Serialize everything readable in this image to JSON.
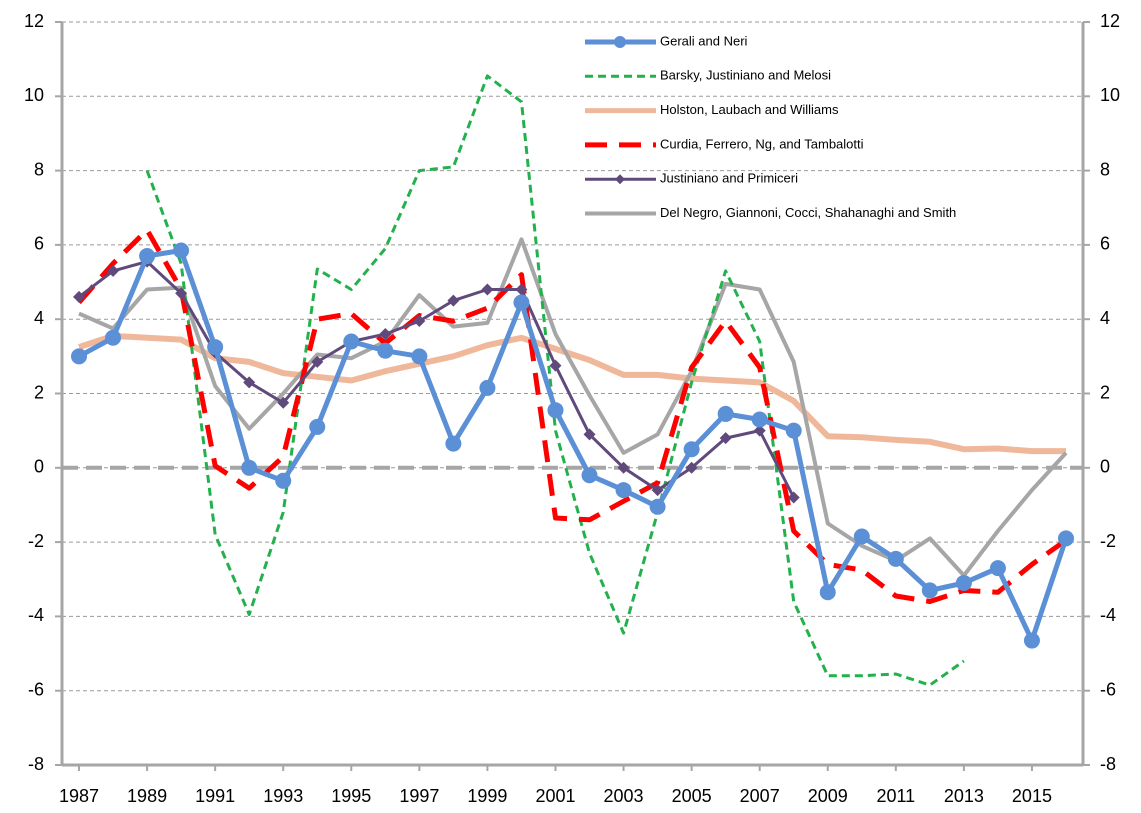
{
  "chart_data": {
    "type": "line",
    "x": [
      1987,
      1988,
      1989,
      1990,
      1991,
      1992,
      1993,
      1994,
      1995,
      1996,
      1997,
      1998,
      1999,
      2000,
      2001,
      2002,
      2003,
      2004,
      2005,
      2006,
      2007,
      2008,
      2009,
      2010,
      2011,
      2012,
      2013,
      2014,
      2015,
      2016
    ],
    "xlim": [
      1986.5,
      2016.5
    ],
    "xticks": [
      1987,
      1989,
      1991,
      1993,
      1995,
      1997,
      1999,
      2001,
      2003,
      2005,
      2007,
      2009,
      2011,
      2013,
      2015
    ],
    "ylim": [
      -8,
      12
    ],
    "yticks": [
      -8,
      -6,
      -4,
      -2,
      0,
      2,
      4,
      6,
      8,
      10,
      12
    ],
    "y2lim": [
      -8,
      12
    ],
    "y2ticks": [
      -8,
      -6,
      -4,
      -2,
      0,
      2,
      4,
      6,
      8,
      10,
      12
    ],
    "grid": true,
    "zero_line": true,
    "legend": "top-right",
    "series": [
      {
        "name": "Gerali and Neri",
        "color": "#5b8fd6",
        "marker": "circle",
        "dash": "solid",
        "width": 5,
        "values": [
          3.0,
          3.5,
          5.7,
          5.85,
          3.25,
          0.0,
          -0.35,
          1.1,
          3.4,
          3.15,
          3.0,
          0.65,
          2.15,
          4.45,
          1.55,
          -0.2,
          -0.6,
          -1.05,
          0.5,
          1.45,
          1.3,
          1.0,
          -3.35,
          -1.85,
          -2.45,
          -3.3,
          -3.1,
          -2.7,
          -4.65,
          -1.9
        ]
      },
      {
        "name": "Barsky, Justiniano and Melosi",
        "color": "#22b14c",
        "marker": "none",
        "dash": "short",
        "width": 3,
        "values": [
          null,
          null,
          8.0,
          5.5,
          -1.8,
          -3.95,
          -1.2,
          5.35,
          4.8,
          5.9,
          8.0,
          8.1,
          10.55,
          9.85,
          1.0,
          -2.3,
          -4.45,
          -1.2,
          2.3,
          5.3,
          3.4,
          -3.6,
          -5.6,
          -5.6,
          -5.55,
          -5.85,
          -5.2,
          null,
          null,
          null
        ]
      },
      {
        "name": "Holston, Laubach and Williams",
        "color": "#f0b89b",
        "marker": "none",
        "dash": "solid",
        "width": 6,
        "values": [
          3.25,
          3.55,
          3.5,
          3.45,
          2.95,
          2.85,
          2.55,
          2.45,
          2.35,
          2.6,
          2.8,
          3.0,
          3.3,
          3.5,
          3.2,
          2.9,
          2.5,
          2.5,
          2.4,
          2.35,
          2.3,
          1.8,
          0.85,
          0.82,
          0.75,
          0.7,
          0.5,
          0.52,
          0.45,
          0.45
        ]
      },
      {
        "name": "Curdia, Ferrero, Ng, and Tambalotti",
        "color": "#ff0000",
        "marker": "none",
        "dash": "long",
        "width": 5,
        "values": [
          4.45,
          5.5,
          6.4,
          4.8,
          0.05,
          -0.55,
          0.3,
          4.0,
          4.15,
          3.35,
          4.1,
          3.95,
          4.3,
          5.2,
          -1.35,
          -1.4,
          -0.9,
          -0.4,
          2.7,
          3.95,
          2.7,
          -1.7,
          -2.6,
          -2.75,
          -3.45,
          -3.6,
          -3.3,
          -3.35,
          -2.6,
          -1.95
        ]
      },
      {
        "name": "Justiniano and Primiceri",
        "color": "#604a7b",
        "marker": "diamond",
        "dash": "solid",
        "width": 3,
        "values": [
          4.6,
          5.3,
          5.55,
          4.7,
          3.1,
          2.3,
          1.75,
          2.85,
          3.4,
          3.6,
          3.95,
          4.5,
          4.8,
          4.8,
          2.75,
          0.9,
          0.0,
          -0.6,
          0.0,
          0.8,
          1.0,
          -0.8,
          null,
          null,
          null,
          null,
          null,
          null,
          null,
          null
        ]
      },
      {
        "name": "Del Negro, Giannoni, Cocci, Shahanaghi and Smith",
        "color": "#a6a6a6",
        "marker": "none",
        "dash": "solid",
        "width": 4,
        "values": [
          4.15,
          3.75,
          4.8,
          4.85,
          2.2,
          1.05,
          2.0,
          3.05,
          2.95,
          3.4,
          4.65,
          3.8,
          3.9,
          6.15,
          3.6,
          1.95,
          0.4,
          0.9,
          2.6,
          4.95,
          4.8,
          2.85,
          -1.5,
          -2.1,
          -2.5,
          -1.9,
          -2.9,
          -1.7,
          -0.6,
          0.4
        ]
      }
    ]
  }
}
